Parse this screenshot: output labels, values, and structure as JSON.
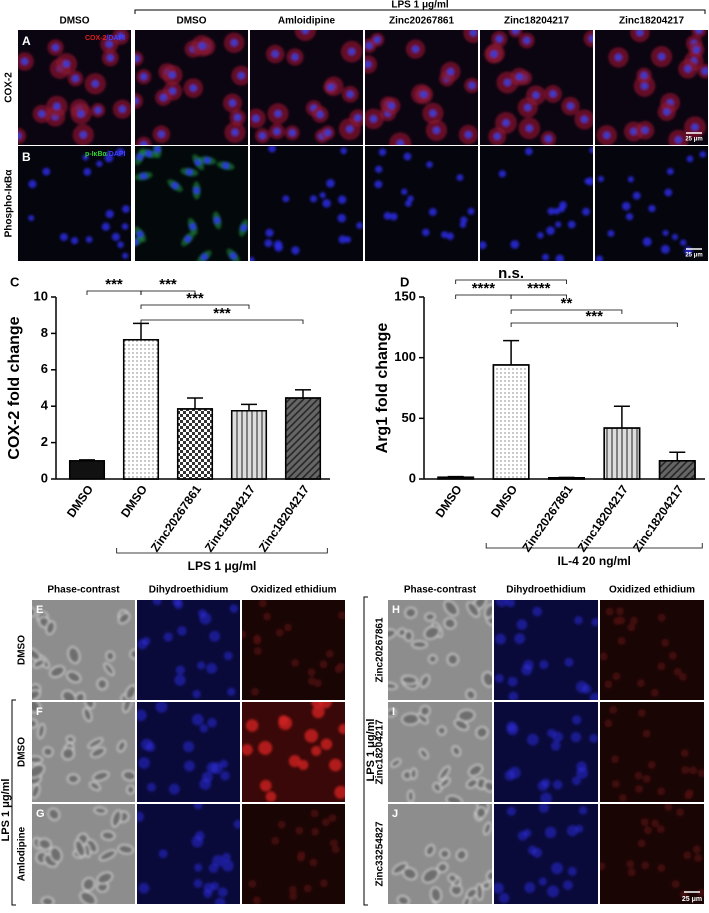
{
  "top_panel": {
    "bracket_label": "LPS 1 μg/ml",
    "columns": [
      "DMSO",
      "DMSO",
      "Amloidipine",
      "Zinc20267861",
      "Zinc18204217",
      "Zinc18204217"
    ],
    "rows": [
      {
        "letter": "A",
        "label": "COX-2",
        "stain": [
          "COX-2",
          "/DAPI"
        ],
        "scale": "25 μm"
      },
      {
        "letter": "B",
        "label": "Phospho-IκBα",
        "stain": [
          "p-IκBα",
          "/DAPI"
        ],
        "scale": "25 μm"
      }
    ]
  },
  "chart_data": [
    {
      "type": "bar",
      "panel": "C",
      "ylabel": "COX-2 fold change",
      "categories": [
        "DMSO",
        "DMSO",
        "Zinc20267861",
        "Zinc18204217",
        "Zinc18204217"
      ],
      "values": [
        1.0,
        7.65,
        3.85,
        3.75,
        4.45
      ],
      "errors": [
        0.05,
        0.9,
        0.6,
        0.35,
        0.45
      ],
      "colors": [
        "#111111",
        "#ffffff",
        "#ffffff",
        "#dddddd",
        "#666666"
      ],
      "ylim": [
        0,
        10
      ],
      "yticks": [
        0,
        2,
        4,
        6,
        8,
        10
      ],
      "annotations": [
        "***",
        "***",
        "***",
        "***"
      ],
      "group_label": "LPS 1 μg/ml"
    },
    {
      "type": "bar",
      "panel": "D",
      "ylabel": "Arg1 fold change",
      "categories": [
        "DMSO",
        "DMSO",
        "Zinc20267861",
        "Zinc18204217",
        "Zinc18204217"
      ],
      "values": [
        1.5,
        94,
        1,
        42,
        15
      ],
      "errors": [
        0.5,
        20,
        0.3,
        18,
        7
      ],
      "colors": [
        "#111111",
        "#ffffff",
        "#ffffff",
        "#dddddd",
        "#666666"
      ],
      "ylim": [
        0,
        150
      ],
      "yticks": [
        0,
        50,
        100,
        150
      ],
      "annotations": [
        "n.s.",
        "****",
        "****",
        "**",
        "***"
      ],
      "group_label": "IL-4 20 ng/ml"
    }
  ],
  "bottom_left": {
    "bracket_label": "LPS 1 μg/ml",
    "columns": [
      "Phase-contrast",
      "Dihydroethidium",
      "Oxidized ethidium"
    ],
    "rows": [
      {
        "letter": "E",
        "label": "DMSO"
      },
      {
        "letter": "F",
        "label": "DMSO"
      },
      {
        "letter": "G",
        "label": "Amlodipine"
      }
    ]
  },
  "bottom_right": {
    "bracket_label": "LPS 1 μg/ml",
    "columns": [
      "Phase-contrast",
      "Dihydroethidium",
      "Oxidized ethidium"
    ],
    "rows": [
      {
        "letter": "H",
        "label": "Zinc20267861"
      },
      {
        "letter": "I",
        "label": "Zinc18204217"
      },
      {
        "letter": "J",
        "label": "Zinc33254827"
      }
    ],
    "scale": "25 μm"
  }
}
